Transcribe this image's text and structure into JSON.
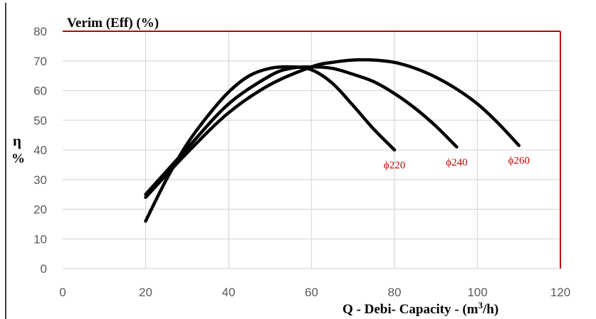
{
  "chart_data": {
    "type": "line",
    "title": "Verim (Eff) (%)",
    "xlabel": "Q - Debi- Capacity - (m³/h)",
    "xlabel_parts": {
      "pre": "Q - Debi- Capacity - (m",
      "sup": "3",
      "post": "/h)"
    },
    "ylabel_top": "η",
    "ylabel_bottom": "%",
    "xlim": [
      0,
      120
    ],
    "ylim": [
      0,
      80
    ],
    "x_ticks": [
      0,
      20,
      40,
      60,
      80,
      100,
      120
    ],
    "y_ticks": [
      0,
      10,
      20,
      30,
      40,
      50,
      60,
      70,
      80
    ],
    "grid": true,
    "frame_color": "#c00000",
    "line_color": "#000000",
    "label_color": "#c00000",
    "series": [
      {
        "name": "ϕ220",
        "x": [
          20,
          25,
          30,
          35,
          40,
          45,
          50,
          55,
          60,
          65,
          70,
          75,
          80
        ],
        "y": [
          16,
          30,
          42,
          51.5,
          59.5,
          65,
          67.5,
          68,
          67,
          62.5,
          55,
          47,
          40
        ]
      },
      {
        "name": "ϕ240",
        "x": [
          20,
          30,
          40,
          50,
          55,
          60,
          65,
          70,
          75,
          80,
          85,
          90,
          95
        ],
        "y": [
          25,
          40.5,
          55.5,
          65,
          67.5,
          68,
          67.5,
          65.5,
          63,
          59,
          54,
          48,
          41
        ]
      },
      {
        "name": "ϕ260",
        "x": [
          20,
          30,
          40,
          50,
          60,
          65,
          70,
          75,
          80,
          85,
          90,
          95,
          100,
          105,
          110
        ],
        "y": [
          24,
          39,
          52.5,
          62,
          68,
          69.5,
          70.3,
          70.3,
          69.5,
          67.5,
          64.5,
          60.5,
          55.5,
          49,
          41.5
        ]
      }
    ]
  }
}
